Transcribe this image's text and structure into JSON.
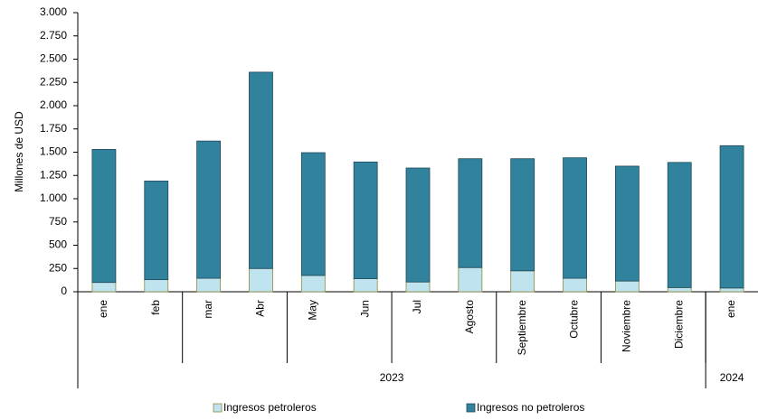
{
  "chart_data": {
    "type": "stacked_bar",
    "y_label": "Millones de USD",
    "categories": [
      "ene",
      "feb",
      "mar",
      "Abr",
      "May",
      "Jun",
      "Jul",
      "Agosto",
      "Septiembre",
      "Octubre",
      "Noviembre",
      "Diciembre",
      "ene"
    ],
    "x_groups": [
      {
        "label": "2023",
        "count": 12
      },
      {
        "label": "2024",
        "count": 1
      }
    ],
    "series": [
      {
        "name": "Ingresos petroleros",
        "color": "#bfe4ef",
        "values": [
          100,
          130,
          145,
          250,
          175,
          140,
          105,
          260,
          225,
          145,
          115,
          45,
          40
        ]
      },
      {
        "name": "Ingresos no petroleros",
        "color": "#31839d",
        "values": [
          1430,
          1060,
          1475,
          2110,
          1320,
          1255,
          1225,
          1170,
          1205,
          1295,
          1235,
          1345,
          1530
        ]
      }
    ],
    "ylim": [
      0,
      3000
    ],
    "yticks": [
      0,
      250,
      500,
      750,
      {
        "value": 1000,
        "label": "1.000"
      },
      {
        "value": 1250,
        "label": "1.250"
      },
      {
        "value": 1500,
        "label": "1.500"
      },
      {
        "value": 1750,
        "label": "1.750"
      },
      {
        "value": 2000,
        "label": "2.000"
      },
      {
        "value": 2250,
        "label": "2.250"
      },
      {
        "value": 2500,
        "label": "2.500"
      },
      {
        "value": 2750,
        "label": "2.750"
      },
      {
        "value": 3000,
        "label": "3.000"
      }
    ],
    "legend": "bottom"
  }
}
